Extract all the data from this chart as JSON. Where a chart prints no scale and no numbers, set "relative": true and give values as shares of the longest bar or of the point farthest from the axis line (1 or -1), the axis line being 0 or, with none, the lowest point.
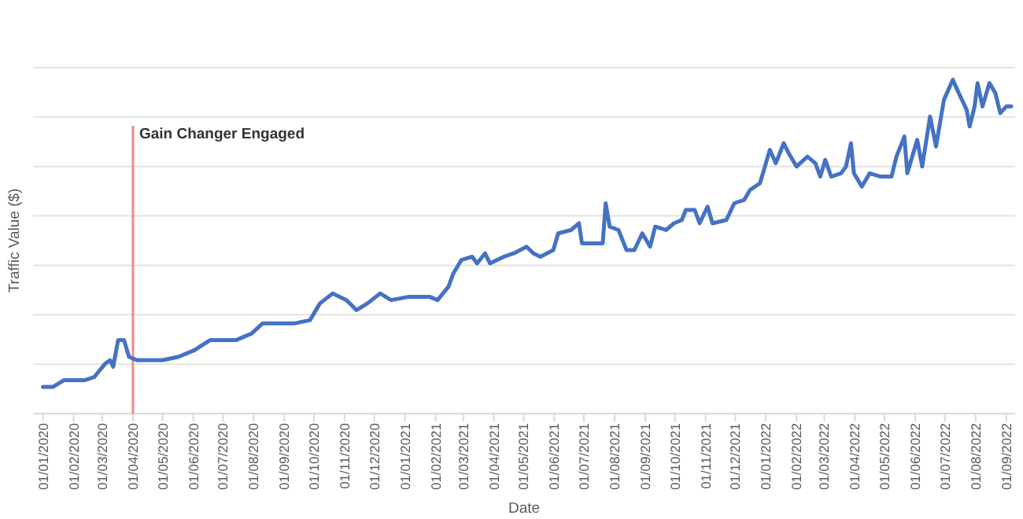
{
  "chart_data": {
    "type": "line",
    "xlabel": "Date",
    "ylabel": "Traffic Value ($)",
    "relative": true,
    "grid": "y",
    "line_style": "solid",
    "marker": "none",
    "xlim": [
      "2019-12-22",
      "2022-09-10"
    ],
    "xticks": [
      {
        "value": "2020-01-01",
        "label": "01/01/2020"
      },
      {
        "value": "2020-02-01",
        "label": "01/02/2020"
      },
      {
        "value": "2020-03-01",
        "label": "01/03/2020"
      },
      {
        "value": "2020-04-01",
        "label": "01/04/2020"
      },
      {
        "value": "2020-05-01",
        "label": "01/05/2020"
      },
      {
        "value": "2020-06-01",
        "label": "01/06/2020"
      },
      {
        "value": "2020-07-01",
        "label": "01/07/2020"
      },
      {
        "value": "2020-08-01",
        "label": "01/08/2020"
      },
      {
        "value": "2020-09-01",
        "label": "01/09/2020"
      },
      {
        "value": "2020-10-01",
        "label": "01/10/2020"
      },
      {
        "value": "2020-11-01",
        "label": "01/11/2020"
      },
      {
        "value": "2020-12-01",
        "label": "01/12/2020"
      },
      {
        "value": "2021-01-01",
        "label": "01/01/2021"
      },
      {
        "value": "2021-02-01",
        "label": "01/02/2021"
      },
      {
        "value": "2021-03-01",
        "label": "01/03/2021"
      },
      {
        "value": "2021-04-01",
        "label": "01/04/2021"
      },
      {
        "value": "2021-05-01",
        "label": "01/05/2021"
      },
      {
        "value": "2021-06-01",
        "label": "01/06/2021"
      },
      {
        "value": "2021-07-01",
        "label": "01/07/2021"
      },
      {
        "value": "2021-08-01",
        "label": "01/08/2021"
      },
      {
        "value": "2021-09-01",
        "label": "01/09/2021"
      },
      {
        "value": "2021-10-01",
        "label": "01/10/2021"
      },
      {
        "value": "2021-11-01",
        "label": "01/11/2021"
      },
      {
        "value": "2021-12-01",
        "label": "01/12/2021"
      },
      {
        "value": "2022-01-01",
        "label": "01/01/2022"
      },
      {
        "value": "2022-02-01",
        "label": "01/02/2022"
      },
      {
        "value": "2022-03-01",
        "label": "01/03/2022"
      },
      {
        "value": "2022-04-01",
        "label": "01/04/2022"
      },
      {
        "value": "2022-05-01",
        "label": "01/05/2022"
      },
      {
        "value": "2022-06-01",
        "label": "01/06/2022"
      },
      {
        "value": "2022-07-01",
        "label": "01/07/2022"
      },
      {
        "value": "2022-08-01",
        "label": "01/08/2022"
      },
      {
        "value": "2022-09-01",
        "label": "01/09/2022"
      }
    ],
    "x": [
      "2020-01-01",
      "2020-01-11",
      "2020-01-22",
      "2020-02-12",
      "2020-02-22",
      "2020-03-04",
      "2020-03-09",
      "2020-03-12",
      "2020-03-17",
      "2020-03-23",
      "2020-03-28",
      "2020-04-05",
      "2020-05-01",
      "2020-05-17",
      "2020-06-02",
      "2020-06-18",
      "2020-07-14",
      "2020-07-30",
      "2020-08-10",
      "2020-08-26",
      "2020-09-11",
      "2020-09-27",
      "2020-10-07",
      "2020-10-20",
      "2020-11-03",
      "2020-11-13",
      "2020-11-24",
      "2020-12-07",
      "2020-12-18",
      "2021-01-05",
      "2021-01-26",
      "2021-02-03",
      "2021-02-14",
      "2021-02-19",
      "2021-02-27",
      "2021-03-10",
      "2021-03-15",
      "2021-03-23",
      "2021-03-28",
      "2021-04-11",
      "2021-04-21",
      "2021-05-04",
      "2021-05-11",
      "2021-05-18",
      "2021-05-31",
      "2021-06-05",
      "2021-06-18",
      "2021-06-26",
      "2021-06-29",
      "2021-07-10",
      "2021-07-20",
      "2021-07-23",
      "2021-07-27",
      "2021-08-05",
      "2021-08-13",
      "2021-08-21",
      "2021-08-29",
      "2021-09-06",
      "2021-09-11",
      "2021-09-22",
      "2021-09-30",
      "2021-10-08",
      "2021-10-12",
      "2021-10-21",
      "2021-10-26",
      "2021-11-03",
      "2021-11-08",
      "2021-11-22",
      "2021-11-30",
      "2021-12-10",
      "2021-12-16",
      "2021-12-26",
      "2021-12-31",
      "2022-01-05",
      "2022-01-11",
      "2022-01-19",
      "2022-01-24",
      "2022-02-01",
      "2022-02-12",
      "2022-02-20",
      "2022-02-25",
      "2022-03-02",
      "2022-03-08",
      "2022-03-18",
      "2022-03-23",
      "2022-03-28",
      "2022-03-31",
      "2022-04-08",
      "2022-04-16",
      "2022-04-27",
      "2022-05-08",
      "2022-05-13",
      "2022-05-21",
      "2022-05-24",
      "2022-06-03",
      "2022-06-08",
      "2022-06-16",
      "2022-06-22",
      "2022-06-30",
      "2022-07-09",
      "2022-07-15",
      "2022-07-23",
      "2022-07-26",
      "2022-07-31",
      "2022-08-03",
      "2022-08-08",
      "2022-08-15",
      "2022-08-21",
      "2022-08-26",
      "2022-09-01",
      "2022-09-06"
    ],
    "series": [
      {
        "color": "#4472c4",
        "values": [
          0.08,
          0.08,
          0.1,
          0.1,
          0.11,
          0.15,
          0.16,
          0.14,
          0.22,
          0.22,
          0.17,
          0.16,
          0.16,
          0.17,
          0.19,
          0.22,
          0.22,
          0.24,
          0.27,
          0.27,
          0.27,
          0.28,
          0.33,
          0.36,
          0.34,
          0.31,
          0.33,
          0.36,
          0.34,
          0.35,
          0.35,
          0.34,
          0.38,
          0.42,
          0.46,
          0.47,
          0.45,
          0.48,
          0.45,
          0.47,
          0.48,
          0.5,
          0.48,
          0.47,
          0.49,
          0.54,
          0.55,
          0.57,
          0.51,
          0.51,
          0.51,
          0.63,
          0.56,
          0.55,
          0.49,
          0.49,
          0.54,
          0.5,
          0.56,
          0.55,
          0.57,
          0.58,
          0.61,
          0.61,
          0.57,
          0.62,
          0.57,
          0.58,
          0.63,
          0.64,
          0.67,
          0.69,
          0.74,
          0.79,
          0.75,
          0.81,
          0.78,
          0.74,
          0.77,
          0.75,
          0.71,
          0.76,
          0.71,
          0.72,
          0.74,
          0.81,
          0.72,
          0.68,
          0.72,
          0.71,
          0.71,
          0.77,
          0.83,
          0.72,
          0.82,
          0.74,
          0.89,
          0.8,
          0.94,
          1,
          0.96,
          0.91,
          0.86,
          0.92,
          0.99,
          0.92,
          0.99,
          0.96,
          0.9,
          0.92,
          0.92
        ]
      }
    ],
    "ref_lines": [
      {
        "axis": "x",
        "value": "2020-04-01",
        "label": "Gain Changer Engaged",
        "color": "#f4868a"
      }
    ]
  }
}
